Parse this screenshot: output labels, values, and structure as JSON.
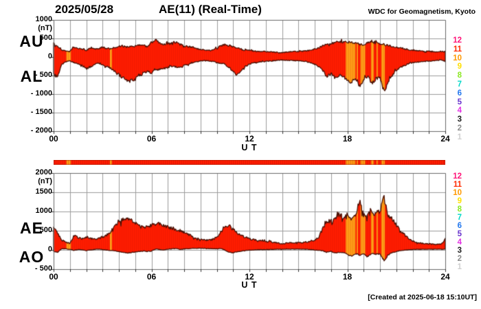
{
  "title": {
    "date": "2025/05/28",
    "main": "AE(11) (Real-Time)",
    "credit": "WDC for Geomagnetism, Kyoto"
  },
  "footer": {
    "created": "[Created at 2025-06-18 15:10UT]"
  },
  "x_axis": {
    "ticks": [
      "00",
      "06",
      "12",
      "18",
      "24"
    ],
    "tick_hours": [
      0,
      6,
      12,
      18,
      24
    ],
    "label": "U T"
  },
  "legend": {
    "meaning": "number of reporting stations",
    "levels": [
      {
        "count": "12",
        "color": "#ff1478"
      },
      {
        "count": "11",
        "color": "#ff2a00"
      },
      {
        "count": "10",
        "color": "#ff9900"
      },
      {
        "count": "9",
        "color": "#ffdf00"
      },
      {
        "count": "8",
        "color": "#8ce824"
      },
      {
        "count": "7",
        "color": "#00d8c8"
      },
      {
        "count": "6",
        "color": "#2277ee"
      },
      {
        "count": "5",
        "color": "#6633cc"
      },
      {
        "count": "4",
        "color": "#e331e3"
      },
      {
        "count": "3",
        "color": "#1a1a1a"
      },
      {
        "count": "2",
        "color": "#8c8c8c"
      },
      {
        "count": "1",
        "color": "#cfcfcf"
      }
    ]
  },
  "colors": {
    "fill_11_stations": "#ff1c00",
    "fill_10_stations": "#ffa017",
    "outline": "#471106",
    "grid": "#9a9a9a",
    "axis": "#666666",
    "tick": "#333333",
    "background": "#ffffff"
  },
  "station_count_bands": {
    "default_count": 11,
    "count_10_hours": [
      [
        0.78,
        1.06
      ],
      [
        3.45,
        3.58
      ],
      [
        17.9,
        18.5
      ],
      [
        18.57,
        18.65
      ],
      [
        18.8,
        19.1
      ],
      [
        19.45,
        19.62
      ],
      [
        19.79,
        19.87
      ],
      [
        20.08,
        20.3
      ]
    ]
  },
  "chart_data": [
    {
      "type": "area",
      "title": "AU / AL envelope (upper panel)",
      "left_labels": [
        "AU",
        "AL"
      ],
      "unit": "(nT)",
      "ylim": [
        -2000,
        1000
      ],
      "ytick_values": [
        1000,
        500,
        0,
        -500,
        -1000,
        -1500,
        -2000
      ],
      "ytick_labels": [
        "1000",
        "500",
        "0",
        "- 500",
        "- 1000",
        "- 1500",
        "- 2000"
      ],
      "xlim_hours": [
        0,
        24
      ],
      "x_hours": {
        "start": 0,
        "end": 24,
        "step": 0.25,
        "count": 97
      },
      "series": [
        {
          "name": "AU",
          "values": [
            360,
            280,
            180,
            160,
            150,
            270,
            230,
            210,
            180,
            240,
            210,
            230,
            270,
            220,
            240,
            260,
            280,
            300,
            270,
            290,
            300,
            320,
            330,
            280,
            395,
            455,
            365,
            340,
            365,
            380,
            395,
            340,
            300,
            285,
            270,
            230,
            200,
            185,
            175,
            190,
            240,
            300,
            330,
            310,
            280,
            250,
            200,
            185,
            175,
            165,
            150,
            150,
            145,
            140,
            130,
            125,
            120,
            130,
            140,
            145,
            150,
            155,
            165,
            185,
            210,
            250,
            300,
            340,
            365,
            395,
            425,
            405,
            390,
            400,
            380,
            340,
            320,
            400,
            430,
            390,
            360,
            330,
            310,
            285,
            265,
            240,
            215,
            195,
            180,
            170,
            165,
            155,
            150,
            145,
            140,
            150,
            145
          ]
        },
        {
          "name": "AL",
          "values": [
            -480,
            -530,
            -200,
            -130,
            -100,
            -150,
            -190,
            -230,
            -315,
            -270,
            -200,
            -160,
            -220,
            -260,
            -300,
            -400,
            -480,
            -560,
            -620,
            -650,
            -600,
            -520,
            -430,
            -400,
            -420,
            -370,
            -330,
            -310,
            -280,
            -250,
            -270,
            -290,
            -230,
            -200,
            -160,
            -130,
            -110,
            -100,
            -105,
            -120,
            -150,
            -170,
            -190,
            -280,
            -380,
            -500,
            -350,
            -250,
            -190,
            -160,
            -140,
            -130,
            -120,
            -110,
            -100,
            -90,
            -80,
            -90,
            -95,
            -100,
            -100,
            -110,
            -130,
            -160,
            -200,
            -270,
            -360,
            -530,
            -440,
            -560,
            -480,
            -520,
            -625,
            -685,
            -560,
            -790,
            -600,
            -530,
            -720,
            -590,
            -560,
            -950,
            -650,
            -470,
            -350,
            -280,
            -230,
            -180,
            -150,
            -140,
            -130,
            -120,
            -110,
            -100,
            -90,
            -80,
            -120
          ]
        }
      ]
    },
    {
      "type": "area",
      "title": "AE / AO envelope (lower panel)",
      "left_labels": [
        "AE",
        "AO"
      ],
      "unit": "(nT)",
      "ylim": [
        -500,
        2000
      ],
      "ytick_values": [
        2000,
        1500,
        1000,
        500,
        0,
        -500
      ],
      "ytick_labels": [
        "2000",
        "1500",
        "1000",
        "500",
        "0",
        "- 500"
      ],
      "xlim_hours": [
        0,
        24
      ],
      "x_hours": {
        "start": 0,
        "end": 24,
        "step": 0.25,
        "count": 97
      },
      "series": [
        {
          "name": "AE",
          "values": [
            640,
            420,
            260,
            200,
            170,
            370,
            320,
            300,
            340,
            300,
            280,
            300,
            340,
            380,
            480,
            600,
            700,
            790,
            815,
            760,
            690,
            620,
            580,
            620,
            650,
            660,
            695,
            640,
            600,
            560,
            520,
            500,
            450,
            400,
            350,
            310,
            280,
            255,
            250,
            280,
            330,
            480,
            580,
            640,
            540,
            450,
            380,
            330,
            290,
            265,
            250,
            240,
            225,
            210,
            195,
            180,
            165,
            175,
            185,
            190,
            190,
            195,
            205,
            230,
            260,
            340,
            560,
            720,
            760,
            815,
            935,
            850,
            930,
            800,
            905,
            1290,
            880,
            900,
            1000,
            940,
            1030,
            1350,
            920,
            790,
            640,
            500,
            400,
            300,
            240,
            200,
            175,
            165,
            160,
            150,
            145,
            150,
            280
          ]
        },
        {
          "name": "AO",
          "values": [
            -40,
            -60,
            30,
            25,
            15,
            -15,
            10,
            5,
            -20,
            0,
            15,
            20,
            10,
            -5,
            -15,
            -20,
            -45,
            -60,
            -75,
            -70,
            -55,
            -40,
            -25,
            -35,
            -30,
            25,
            10,
            0,
            20,
            35,
            40,
            15,
            25,
            30,
            40,
            45,
            40,
            38,
            35,
            30,
            30,
            40,
            -10,
            -60,
            -75,
            -45,
            -30,
            -15,
            -5,
            0,
            5,
            8,
            10,
            12,
            15,
            18,
            20,
            20,
            22,
            22,
            22,
            20,
            18,
            10,
            0,
            -10,
            -25,
            -55,
            -40,
            -75,
            -60,
            -65,
            -115,
            -165,
            -95,
            -140,
            -105,
            -165,
            -90,
            -110,
            -95,
            -280,
            -130,
            -70,
            -40,
            -20,
            -5,
            5,
            12,
            15,
            18,
            18,
            18,
            18,
            20,
            18,
            20
          ]
        }
      ]
    }
  ]
}
